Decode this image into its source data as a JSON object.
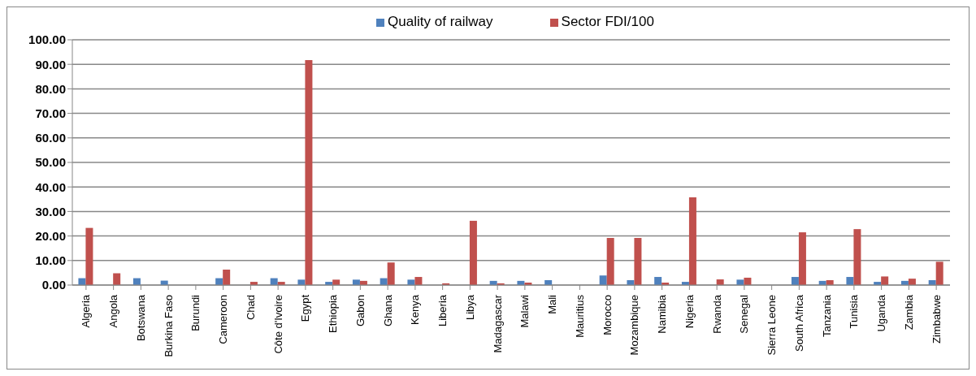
{
  "chart_data": {
    "type": "bar",
    "categories": [
      "Algeria",
      "Angola",
      "Botswana",
      "Burkina Faso",
      "Burundi",
      "Cameroon",
      "Chad",
      "Côte d'Ivoire",
      "Egypt",
      "Ethiopia",
      "Gabon",
      "Ghana",
      "Kenya",
      "Liberia",
      "Libya",
      "Madagascar",
      "Malawi",
      "Mali",
      "Mauritius",
      "Morocco",
      "Mozambique",
      "Namibia",
      "Nigeria",
      "Rwanda",
      "Senegal",
      "Sierra Leone",
      "South Africa",
      "Tanzania",
      "Tunisia",
      "Uganda",
      "Zambia",
      "Zimbabwe"
    ],
    "series": [
      {
        "name": "Quality of railway",
        "color": "#4f81bd",
        "values": [
          2.8,
          null,
          2.8,
          1.8,
          null,
          2.8,
          null,
          2.8,
          2.2,
          1.3,
          2.2,
          2.8,
          2.2,
          null,
          null,
          1.7,
          1.7,
          2.0,
          null,
          3.9,
          2.0,
          3.3,
          1.3,
          null,
          2.2,
          null,
          3.3,
          1.7,
          3.3,
          1.3,
          1.7,
          2.0
        ]
      },
      {
        "name": "Sector FDI/100",
        "color": "#c0504d",
        "values": [
          23.3,
          4.8,
          null,
          null,
          null,
          6.3,
          1.3,
          1.3,
          91.7,
          2.2,
          1.7,
          9.2,
          3.3,
          0.7,
          26.2,
          0.7,
          1.0,
          null,
          null,
          19.2,
          19.2,
          1.0,
          35.8,
          2.3,
          3.0,
          null,
          21.5,
          2.0,
          22.8,
          3.5,
          2.6,
          9.5
        ]
      }
    ],
    "ylim": [
      0,
      100
    ],
    "yticks": [
      {
        "value": 0,
        "label": "0.00"
      },
      {
        "value": 10,
        "label": "10.00"
      },
      {
        "value": 20,
        "label": "20.00"
      },
      {
        "value": 30,
        "label": "30.00"
      },
      {
        "value": 40,
        "label": "40.00"
      },
      {
        "value": 50,
        "label": "50.00"
      },
      {
        "value": 60,
        "label": "60.00"
      },
      {
        "value": 70,
        "label": "70.00"
      },
      {
        "value": 80,
        "label": "80.00"
      },
      {
        "value": 90,
        "label": "90.00"
      },
      {
        "value": 100,
        "label": "100.00"
      }
    ],
    "grid": "y",
    "legend": "top"
  }
}
